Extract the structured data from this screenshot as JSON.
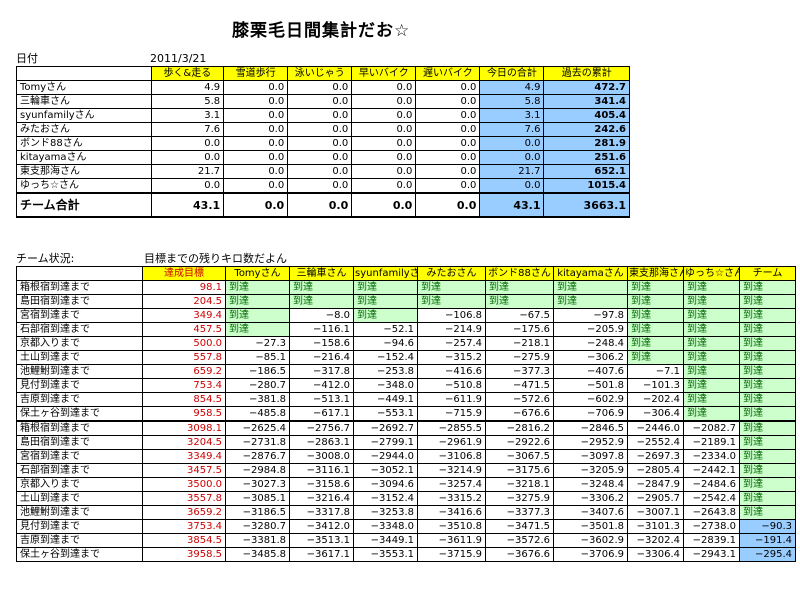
{
  "title": "膝栗毛日間集計だお☆",
  "date_label": "日付",
  "date_value": "2011/3/21",
  "daily": {
    "headers": [
      "",
      "歩く&走る",
      "雪道歩行",
      "泳いじゃう",
      "早いバイク",
      "遅いバイク",
      "今日の合計",
      "過去の累計"
    ],
    "rows": [
      [
        "Tomyさん",
        "4.9",
        "0.0",
        "0.0",
        "0.0",
        "0.0",
        "4.9",
        "472.7"
      ],
      [
        "三輪車さん",
        "5.8",
        "0.0",
        "0.0",
        "0.0",
        "0.0",
        "5.8",
        "341.4"
      ],
      [
        "syunfamilyさん",
        "3.1",
        "0.0",
        "0.0",
        "0.0",
        "0.0",
        "3.1",
        "405.4"
      ],
      [
        "みたおさん",
        "7.6",
        "0.0",
        "0.0",
        "0.0",
        "0.0",
        "7.6",
        "242.6"
      ],
      [
        "ボンド88さん",
        "0.0",
        "0.0",
        "0.0",
        "0.0",
        "0.0",
        "0.0",
        "281.9"
      ],
      [
        "kitayamaさん",
        "0.0",
        "0.0",
        "0.0",
        "0.0",
        "0.0",
        "0.0",
        "251.6"
      ],
      [
        "東支那海さん",
        "21.7",
        "0.0",
        "0.0",
        "0.0",
        "0.0",
        "21.7",
        "652.1"
      ],
      [
        "ゆっち☆さん",
        "0.0",
        "0.0",
        "0.0",
        "0.0",
        "0.0",
        "0.0",
        "1015.4"
      ]
    ],
    "total": [
      "チーム合計",
      "43.1",
      "0.0",
      "0.0",
      "0.0",
      "0.0",
      "43.1",
      "3663.1"
    ]
  },
  "team_status_label": "チーム状況:",
  "remaining_label": "目標までの残りキロ数だよん",
  "goals": {
    "headers": [
      "",
      "達成目標",
      "Tomyさん",
      "三輪車さん",
      "syunfamilyさん",
      "みたおさん",
      "ボンド88さん",
      "kitayamaさん",
      "東支那海さん",
      "ゆっち☆さん",
      "チーム"
    ],
    "reached": "到達",
    "rows": [
      [
        "箱根宿到達まで",
        "98.1",
        "到達",
        "到達",
        "到達",
        "到達",
        "到達",
        "到達",
        "到達",
        "到達",
        "到達"
      ],
      [
        "島田宿到達まで",
        "204.5",
        "到達",
        "到達",
        "到達",
        "到達",
        "到達",
        "到達",
        "到達",
        "到達",
        "到達"
      ],
      [
        "宮宿到達まで",
        "349.4",
        "到達",
        "−8.0",
        "到達",
        "−106.8",
        "−67.5",
        "−97.8",
        "到達",
        "到達",
        "到達"
      ],
      [
        "石部宿到達まで",
        "457.5",
        "到達",
        "−116.1",
        "−52.1",
        "−214.9",
        "−175.6",
        "−205.9",
        "到達",
        "到達",
        "到達"
      ],
      [
        "京都入りまで",
        "500.0",
        "−27.3",
        "−158.6",
        "−94.6",
        "−257.4",
        "−218.1",
        "−248.4",
        "到達",
        "到達",
        "到達"
      ],
      [
        "土山到達まで",
        "557.8",
        "−85.1",
        "−216.4",
        "−152.4",
        "−315.2",
        "−275.9",
        "−306.2",
        "到達",
        "到達",
        "到達"
      ],
      [
        "池鯉鮒到達まで",
        "659.2",
        "−186.5",
        "−317.8",
        "−253.8",
        "−416.6",
        "−377.3",
        "−407.6",
        "−7.1",
        "到達",
        "到達"
      ],
      [
        "見付到達まで",
        "753.4",
        "−280.7",
        "−412.0",
        "−348.0",
        "−510.8",
        "−471.5",
        "−501.8",
        "−101.3",
        "到達",
        "到達"
      ],
      [
        "吉原到達まで",
        "854.5",
        "−381.8",
        "−513.1",
        "−449.1",
        "−611.9",
        "−572.6",
        "−602.9",
        "−202.4",
        "到達",
        "到達"
      ],
      [
        "保土ヶ谷到達まで",
        "958.5",
        "−485.8",
        "−617.1",
        "−553.1",
        "−715.9",
        "−676.6",
        "−706.9",
        "−306.4",
        "到達",
        "到達"
      ],
      [
        "箱根宿到達まで",
        "3098.1",
        "−2625.4",
        "−2756.7",
        "−2692.7",
        "−2855.5",
        "−2816.2",
        "−2846.5",
        "−2446.0",
        "−2082.7",
        "到達"
      ],
      [
        "島田宿到達まで",
        "3204.5",
        "−2731.8",
        "−2863.1",
        "−2799.1",
        "−2961.9",
        "−2922.6",
        "−2952.9",
        "−2552.4",
        "−2189.1",
        "到達"
      ],
      [
        "宮宿到達まで",
        "3349.4",
        "−2876.7",
        "−3008.0",
        "−2944.0",
        "−3106.8",
        "−3067.5",
        "−3097.8",
        "−2697.3",
        "−2334.0",
        "到達"
      ],
      [
        "石部宿到達まで",
        "3457.5",
        "−2984.8",
        "−3116.1",
        "−3052.1",
        "−3214.9",
        "−3175.6",
        "−3205.9",
        "−2805.4",
        "−2442.1",
        "到達"
      ],
      [
        "京都入りまで",
        "3500.0",
        "−3027.3",
        "−3158.6",
        "−3094.6",
        "−3257.4",
        "−3218.1",
        "−3248.4",
        "−2847.9",
        "−2484.6",
        "到達"
      ],
      [
        "土山到達まで",
        "3557.8",
        "−3085.1",
        "−3216.4",
        "−3152.4",
        "−3315.2",
        "−3275.9",
        "−3306.2",
        "−2905.7",
        "−2542.4",
        "到達"
      ],
      [
        "池鯉鮒到達まで",
        "3659.2",
        "−3186.5",
        "−3317.8",
        "−3253.8",
        "−3416.6",
        "−3377.3",
        "−3407.6",
        "−3007.1",
        "−2643.8",
        "到達"
      ],
      [
        "見付到達まで",
        "3753.4",
        "−3280.7",
        "−3412.0",
        "−3348.0",
        "−3510.8",
        "−3471.5",
        "−3501.8",
        "−3101.3",
        "−2738.0",
        "−90.3"
      ],
      [
        "吉原到達まで",
        "3854.5",
        "−3381.8",
        "−3513.1",
        "−3449.1",
        "−3611.9",
        "−3572.6",
        "−3602.9",
        "−3202.4",
        "−2839.1",
        "−191.4"
      ],
      [
        "保土ヶ谷到達まで",
        "3958.5",
        "−3485.8",
        "−3617.1",
        "−3553.1",
        "−3715.9",
        "−3676.6",
        "−3706.9",
        "−3306.4",
        "−2943.1",
        "−295.4"
      ]
    ]
  },
  "colors": {
    "header_bg": "#ffff00",
    "highlight_blue": "#99ccff",
    "reached_bg": "#ccffcc",
    "goal_text": "#cc0000"
  }
}
